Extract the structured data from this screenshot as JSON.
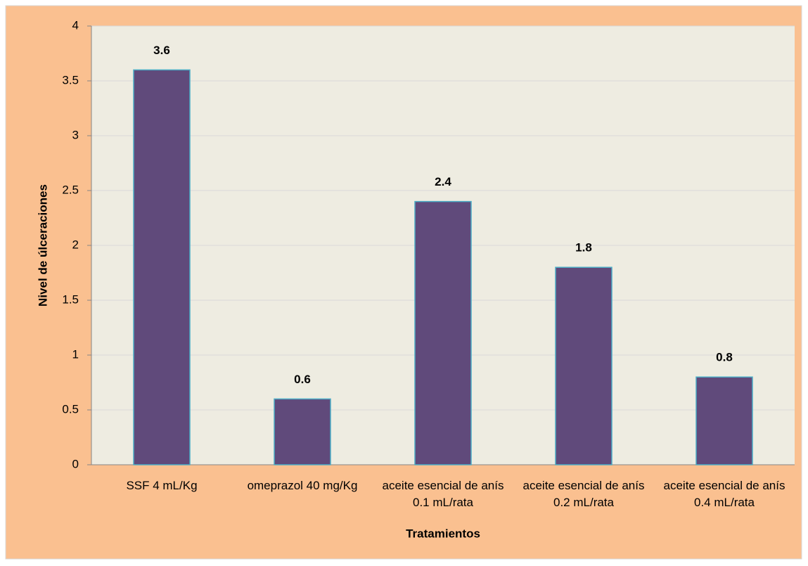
{
  "chart_data": {
    "type": "bar",
    "categories": [
      "SSF 4 mL/Kg",
      "omeprazol 40 mg/Kg",
      "aceite esencial de anís 0.1 mL/rata",
      "aceite esencial de anís 0.2 mL/rata",
      "aceite esencial de anís 0.4 mL/rata"
    ],
    "values": [
      3.6,
      0.6,
      2.4,
      1.8,
      0.8
    ],
    "color": "#604a7b",
    "edge_color": "#4bacc6",
    "x_label": "Tratamientos",
    "y_label": "Nivel de úlceraciones",
    "ylim": [
      0,
      4
    ],
    "yticks": [
      0,
      0.5,
      1,
      1.5,
      2,
      2.5,
      3,
      3.5,
      4
    ],
    "grid": true
  }
}
